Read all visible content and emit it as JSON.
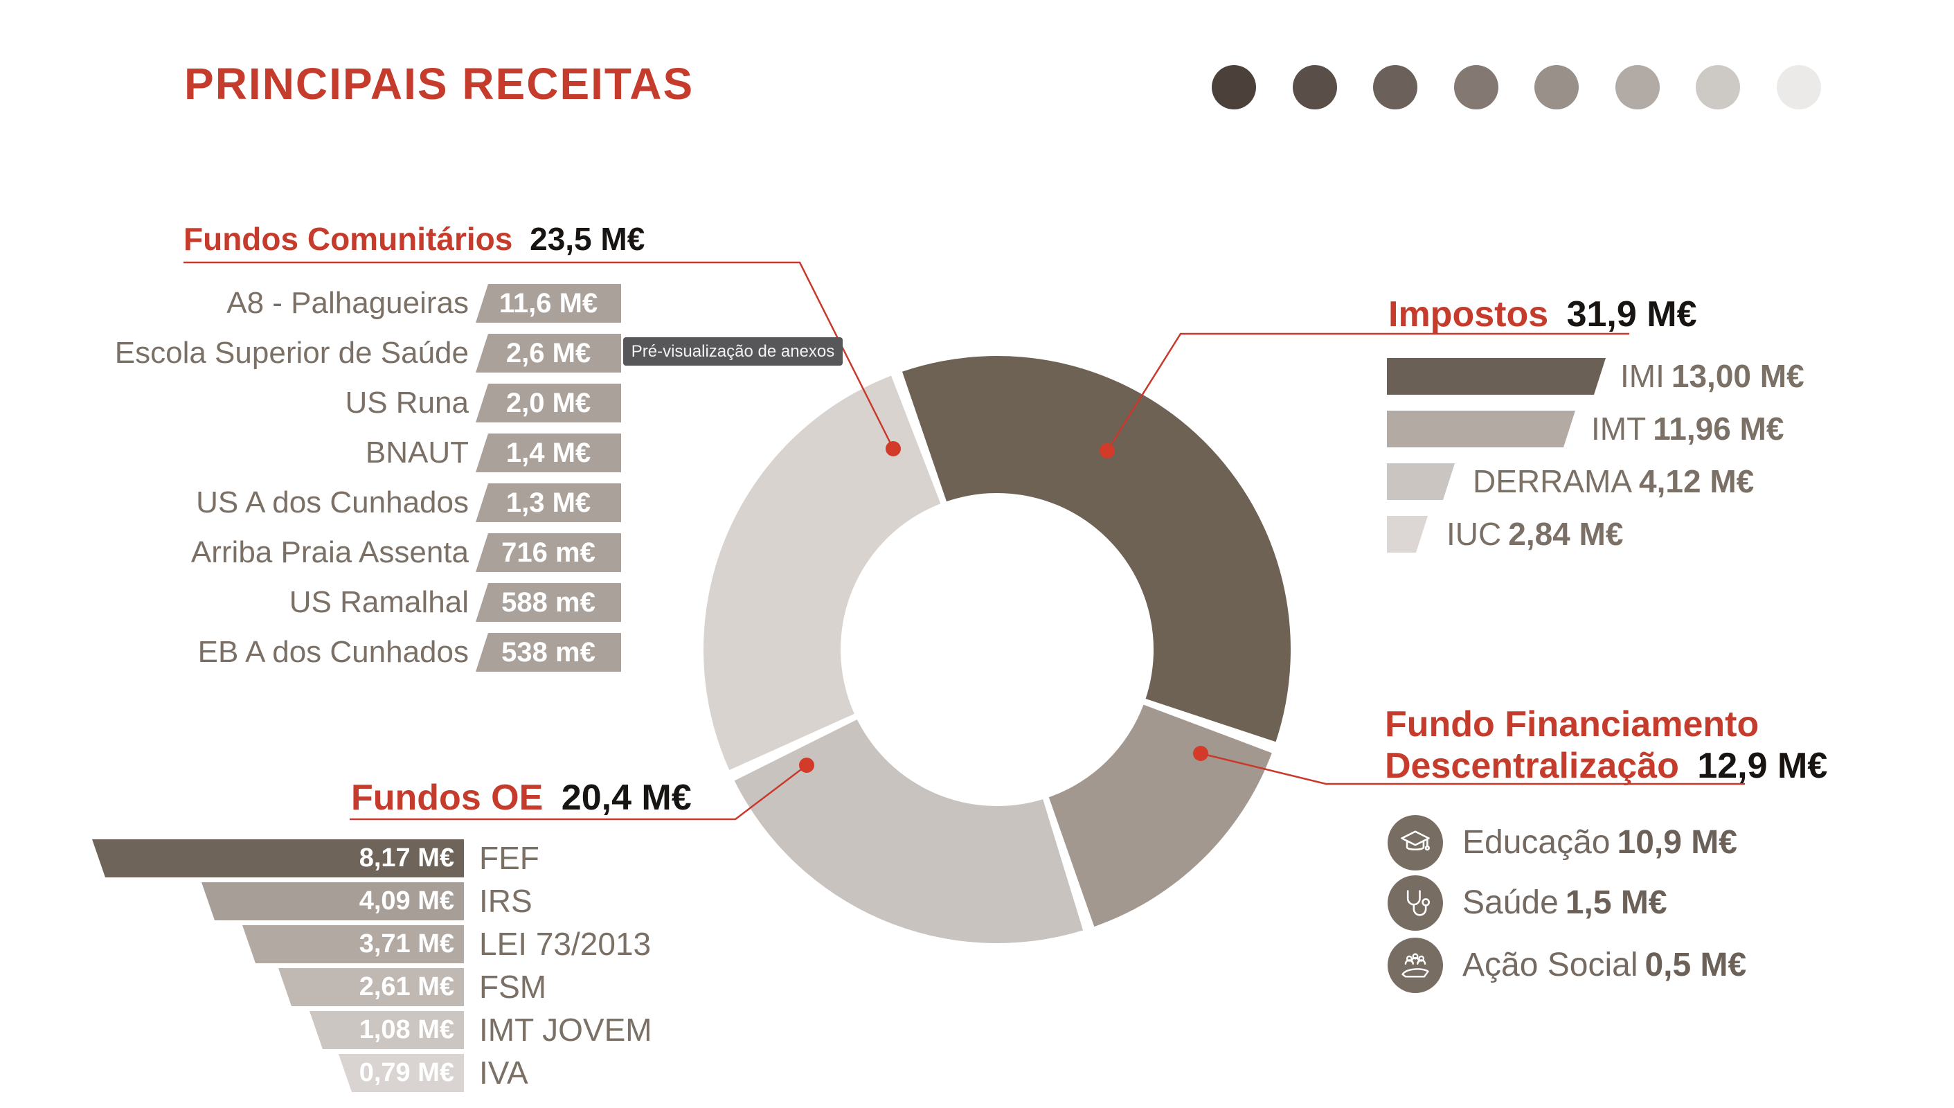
{
  "title": "PRINCIPAIS RECEITAS",
  "tooltip": "Pré-visualização de anexos",
  "palette_dots": [
    "#4b403a",
    "#594e48",
    "#6c615a",
    "#837972",
    "#99908a",
    "#b2aba5",
    "#cdc9c5",
    "#eceae9"
  ],
  "colors": {
    "accent_red": "#c53b2c",
    "line_red": "#c9392b",
    "dot_red": "#d23a2a",
    "text_gray": "#7b7066",
    "value_black": "#171412"
  },
  "chart_data": {
    "type": "pie",
    "subtype": "donut",
    "title": "PRINCIPAIS RECEITAS",
    "unit": "M€",
    "direction": "clockwise",
    "start_angle_deg": -20,
    "inner_radius_ratio": 0.53,
    "legend_position": "callouts",
    "series": [
      {
        "name": "Impostos",
        "value": 31.9,
        "color": "#6e6255"
      },
      {
        "name": "Fundo Financiamento Descentralização",
        "value": 12.9,
        "color": "#a3988f"
      },
      {
        "name": "Fundos OE",
        "value": 20.4,
        "color": "#c9c3bf"
      },
      {
        "name": "Fundos Comunitários",
        "value": 23.5,
        "color": "#d9d3d0"
      }
    ]
  },
  "sections": {
    "fundos_comunitarios": {
      "title": "Fundos Comunitários",
      "value": "23,5 M€",
      "items": [
        {
          "name": "A8 - Palhagueiras",
          "value": "11,6 M€"
        },
        {
          "name": "Escola Superior de Saúde",
          "value": "2,6 M€"
        },
        {
          "name": "US Runa",
          "value": "2,0 M€"
        },
        {
          "name": "BNAUT",
          "value": "1,4 M€"
        },
        {
          "name": "US A dos Cunhados",
          "value": "1,3 M€"
        },
        {
          "name": "Arriba Praia Assenta",
          "value": "716 m€"
        },
        {
          "name": "US Ramalhal",
          "value": "588 m€"
        },
        {
          "name": "EB A dos Cunhados",
          "value": "538 m€"
        }
      ]
    },
    "impostos": {
      "title": "Impostos",
      "value": "31,9 M€",
      "items": [
        {
          "name": "IMI",
          "value": "13,00 M€"
        },
        {
          "name": "IMT",
          "value": "11,96 M€"
        },
        {
          "name": "DERRAMA",
          "value": "4,12 M€"
        },
        {
          "name": "IUC",
          "value": "2,84 M€"
        }
      ]
    },
    "fundo_financiamento": {
      "title_line1": "Fundo Financiamento",
      "title_line2": "Descentralização",
      "value": "12,9 M€",
      "items": [
        {
          "icon": "graduation-cap",
          "name": "Educação",
          "value": "10,9 M€"
        },
        {
          "icon": "stethoscope",
          "name": "Saúde",
          "value": "1,5 M€"
        },
        {
          "icon": "helping-hands",
          "name": "Ação Social",
          "value": "0,5 M€"
        }
      ]
    },
    "fundos_oe": {
      "title": "Fundos OE",
      "value": "20,4 M€",
      "items": [
        {
          "value": "8,17 M€",
          "name": "FEF"
        },
        {
          "value": "4,09 M€",
          "name": "IRS"
        },
        {
          "value": "3,71 M€",
          "name": "LEI 73/2013"
        },
        {
          "value": "2,61 M€",
          "name": "FSM"
        },
        {
          "value": "1,08 M€",
          "name": "IMT JOVEM"
        },
        {
          "value": "0,79 M€",
          "name": "IVA"
        }
      ]
    }
  }
}
